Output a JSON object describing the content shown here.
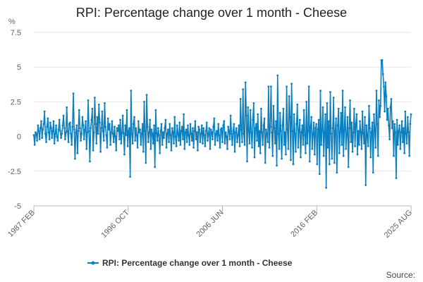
{
  "chart_data": {
    "type": "line",
    "title": "RPI: Percentage change over 1 month - Cheese",
    "ylabel": "%",
    "ylim": [
      -5,
      7.5
    ],
    "yticks": [
      "7.5",
      "5",
      "2.5",
      "0",
      "-2.5",
      "-5"
    ],
    "yticks_values": [
      7.5,
      5,
      2.5,
      0,
      -2.5,
      -5
    ],
    "xticks": [
      "1987 FEB",
      "1996 OCT",
      "2006 JUN",
      "2016 FEB",
      "2025 AUG"
    ],
    "xrange": [
      "1987 FEB",
      "2025 AUG"
    ],
    "grid": "horizontal",
    "legend_position": "bottom",
    "series": [
      {
        "name": "RPI: Percentage change over 1 month - Cheese",
        "color": "#0b7fbf",
        "x_start": "1987 FEB",
        "frequency": "monthly",
        "values": [
          0.1,
          -0.6,
          0.3,
          0.2,
          -0.3,
          0.8,
          0.4,
          -0.2,
          0.6,
          1.1,
          -0.1,
          0.5,
          0.9,
          1.8,
          0.2,
          -0.4,
          0.7,
          1.3,
          0.3,
          -0.2,
          1.0,
          0.6,
          -0.1,
          0.4,
          1.1,
          -0.5,
          0.2,
          0.8,
          0.0,
          -0.3,
          0.5,
          1.2,
          0.4,
          -0.1,
          0.2,
          0.8,
          1.5,
          0.6,
          -0.2,
          0.3,
          2.1,
          0.4,
          -0.4,
          0.9,
          1.0,
          0.2,
          -0.6,
          0.7,
          3.1,
          0.5,
          -1.6,
          0.3,
          0.8,
          -1.2,
          0.4,
          1.9,
          0.6,
          -0.3,
          0.2,
          1.4,
          0.8,
          -0.2,
          0.5,
          1.1,
          -0.9,
          0.3,
          2.6,
          0.4,
          -1.8,
          0.6,
          1.2,
          2.0,
          -1.0,
          0.3,
          2.8,
          0.9,
          -0.5,
          1.4,
          0.2,
          2.3,
          1.0,
          -1.1,
          0.6,
          1.8,
          0.4,
          -0.3,
          2.4,
          0.7,
          0.1,
          -0.8,
          1.3,
          0.5,
          0.9,
          -0.6,
          0.3,
          1.1,
          0.2,
          -0.4,
          0.7,
          0.0,
          -1.0,
          0.6,
          0.4,
          0.8,
          -0.2,
          1.2,
          -0.5,
          0.3,
          1.5,
          0.2,
          -1.3,
          0.8,
          0.1,
          1.9,
          -0.7,
          0.4,
          0.6,
          -2.9,
          3.3,
          0.2,
          -0.5,
          0.9,
          1.4,
          -0.3,
          0.6,
          0.1,
          -0.8,
          1.1,
          0.3,
          0.5,
          -0.6,
          0.2,
          0.9,
          -1.1,
          2.5,
          0.4,
          -1.9,
          3.0,
          0.7,
          -0.4,
          0.3,
          1.2,
          -0.9,
          0.5,
          0.2,
          -0.5,
          0.8,
          -2.2,
          1.9,
          0.2,
          -0.3,
          0.6,
          0.1,
          -1.2,
          0.4,
          0.9,
          -0.6,
          0.3,
          -0.1,
          0.6,
          1.2,
          -0.8,
          0.2,
          0.5,
          -0.4,
          0.9,
          0.1,
          -1.0,
          0.6,
          0.3,
          -0.5,
          1.4,
          0.0,
          -0.7,
          0.8,
          0.2,
          -0.3,
          1.0,
          -0.6,
          0.4,
          0.7,
          -0.2,
          1.6,
          -0.9,
          0.3,
          0.5,
          -0.4,
          0.8,
          0.1,
          -0.6,
          0.9,
          0.2,
          -0.3,
          0.6,
          -0.8,
          0.4,
          1.1,
          -0.2,
          0.3,
          -1.0,
          0.7,
          0.5,
          -0.4,
          0.2,
          0.8,
          -0.5,
          0.6,
          0.1,
          -0.7,
          0.4,
          1.0,
          -0.3,
          0.2,
          0.6,
          -0.9,
          0.5,
          0.3,
          -0.2,
          0.7,
          1.3,
          -0.6,
          0.2,
          0.4,
          -0.3,
          0.9,
          0.1,
          -0.8,
          0.5,
          0.6,
          -0.4,
          0.8,
          1.1,
          -0.5,
          0.3,
          0.0,
          -0.9,
          0.7,
          0.4,
          -0.2,
          1.5,
          0.2,
          -0.6,
          0.4,
          0.9,
          -1.1,
          0.3,
          0.6,
          -0.4,
          0.1,
          0.8,
          -0.7,
          2.7,
          0.5,
          -0.4,
          3.4,
          0.2,
          -0.6,
          3.9,
          1.5,
          -1.8,
          2.1,
          0.4,
          -0.5,
          1.9,
          0.3,
          -0.8,
          1.2,
          2.4,
          -1.5,
          0.6,
          0.9,
          -0.3,
          1.6,
          -0.7,
          0.4,
          -1.2,
          2.0,
          0.3,
          -0.6,
          0.8,
          1.3,
          -1.9,
          0.5,
          0.2,
          -0.4,
          3.6,
          -0.8,
          0.7,
          3.6,
          0.3,
          -1.4,
          2.2,
          0.6,
          -0.5,
          1.1,
          -2.1,
          4.4,
          0.2,
          -0.9,
          1.7,
          0.4,
          -1.6,
          0.8,
          2.0,
          -0.6,
          0.3,
          -1.3,
          3.6,
          0.5,
          -0.9,
          2.9,
          1.4,
          -1.7,
          3.8,
          0.4,
          -2.0,
          1.6,
          0.2,
          -1.1,
          0.9,
          2.3,
          -0.8,
          0.5,
          1.2,
          -1.5,
          0.3,
          0.8,
          -0.6,
          1.9,
          0.1,
          -1.2,
          2.5,
          -0.5,
          0.4,
          3.6,
          -1.8,
          0.7,
          1.4,
          -0.9,
          0.2,
          1.0,
          -1.3,
          0.6,
          0.9,
          -2.0,
          0.5,
          1.2,
          -2.7,
          3.3,
          -0.6,
          0.4,
          2.1,
          -1.4,
          0.3,
          1.6,
          -3.7,
          2.4,
          -0.8,
          1.1,
          -2.0,
          3.2,
          0.2,
          -1.6,
          0.6,
          2.8,
          -1.9,
          0.4,
          1.3,
          -2.6,
          0.8,
          2.0,
          -1.2,
          0.3,
          1.7,
          -0.6,
          3.3,
          -1.4,
          0.5,
          2.1,
          -0.9,
          0.2,
          1.4,
          -2.2,
          0.6,
          2.6,
          -0.4,
          1.0,
          -1.1,
          0.3,
          2.0,
          -0.7,
          0.9,
          1.6,
          -1.3,
          0.4,
          -0.6,
          1.1,
          0.3,
          -0.9,
          1.8,
          0.2,
          -0.5,
          1.4,
          -3.5,
          0.8,
          0.1,
          -0.7,
          2.2,
          0.6,
          -1.5,
          0.3,
          1.0,
          -2.6,
          1.6,
          0.5,
          -0.8,
          3.3,
          0.9,
          -1.4,
          2.6,
          1.4,
          2.2,
          5.5,
          5.5,
          4.5,
          3.6,
          1.8,
          3.9,
          2.9,
          1.2,
          2.0,
          0.8,
          -0.2,
          2.1,
          2.7,
          0.6,
          1.1,
          -1.4,
          0.9,
          0.3,
          -3.0,
          1.2,
          -0.6,
          0.4,
          0.8,
          -0.9,
          0.3,
          1.1,
          -0.4,
          0.6,
          -1.2,
          1.8,
          0.2,
          -0.5,
          1.4,
          0.3,
          -1.4,
          0.9,
          1.6
        ]
      }
    ],
    "source_label": "Source:"
  }
}
